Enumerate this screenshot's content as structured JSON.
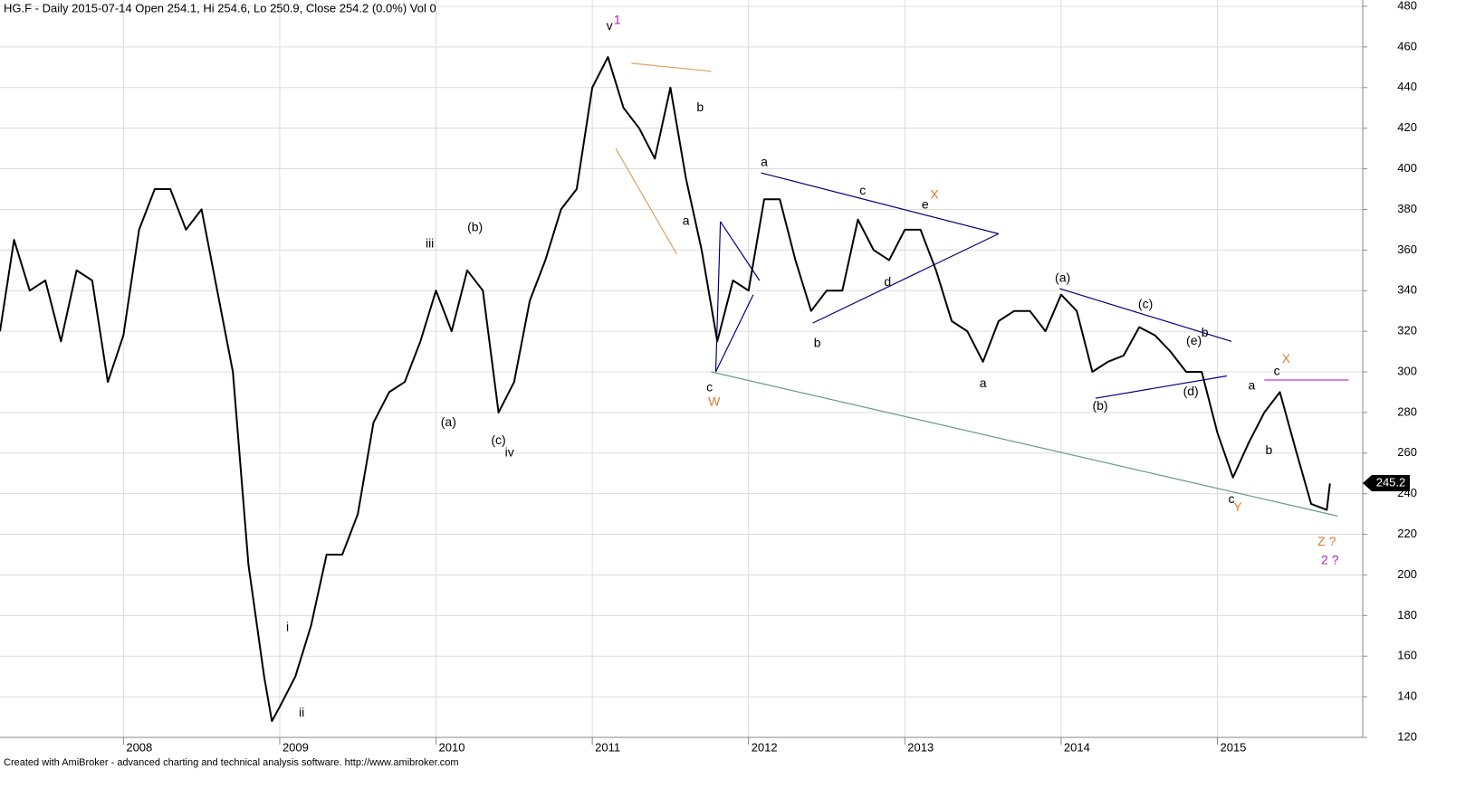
{
  "chart_data": {
    "type": "line",
    "title": "HG.F - Daily 2015-07-14 Open 254.1, Hi 254.6, Lo 250.9, Close 254.2 (0.0%) Vol 0",
    "footer": "Created with AmiBroker - advanced charting and technical analysis software. http://www.amibroker.com",
    "xlim": [
      2007.21,
      2015.93
    ],
    "xticks": [
      2008,
      2009,
      2010,
      2011,
      2012,
      2013,
      2014,
      2015
    ],
    "ylim": [
      120,
      480
    ],
    "yticks": [
      120,
      140,
      160,
      180,
      200,
      220,
      240,
      260,
      280,
      300,
      320,
      340,
      360,
      380,
      400,
      420,
      440,
      460,
      480
    ],
    "grid": true,
    "x": [
      2007.21,
      2007.3,
      2007.4,
      2007.5,
      2007.6,
      2007.7,
      2007.8,
      2007.9,
      2008.0,
      2008.1,
      2008.2,
      2008.3,
      2008.4,
      2008.5,
      2008.6,
      2008.7,
      2008.8,
      2008.9,
      2008.95,
      2009.0,
      2009.1,
      2009.2,
      2009.3,
      2009.4,
      2009.5,
      2009.6,
      2009.7,
      2009.8,
      2009.9,
      2010.0,
      2010.1,
      2010.2,
      2010.3,
      2010.4,
      2010.5,
      2010.6,
      2010.7,
      2010.8,
      2010.9,
      2011.0,
      2011.1,
      2011.2,
      2011.3,
      2011.4,
      2011.5,
      2011.6,
      2011.7,
      2011.8,
      2011.9,
      2012.0,
      2012.1,
      2012.2,
      2012.3,
      2012.4,
      2012.5,
      2012.6,
      2012.7,
      2012.8,
      2012.9,
      2013.0,
      2013.1,
      2013.2,
      2013.3,
      2013.4,
      2013.5,
      2013.6,
      2013.7,
      2013.8,
      2013.9,
      2014.0,
      2014.1,
      2014.2,
      2014.3,
      2014.4,
      2014.5,
      2014.6,
      2014.7,
      2014.8,
      2014.9,
      2015.0,
      2015.1,
      2015.2,
      2015.3,
      2015.4,
      2015.5,
      2015.6,
      2015.7,
      2015.72
    ],
    "series": [
      {
        "name": "HG.F",
        "color": "#000000",
        "values": [
          320,
          365,
          340,
          345,
          315,
          350,
          345,
          295,
          318,
          370,
          390,
          390,
          370,
          380,
          340,
          300,
          205,
          150,
          128,
          135,
          150,
          175,
          210,
          210,
          230,
          275,
          290,
          295,
          315,
          340,
          320,
          350,
          340,
          280,
          295,
          335,
          355,
          380,
          390,
          440,
          455,
          430,
          420,
          405,
          440,
          395,
          360,
          315,
          345,
          340,
          385,
          385,
          355,
          330,
          340,
          340,
          375,
          360,
          355,
          370,
          370,
          350,
          325,
          320,
          305,
          325,
          330,
          330,
          320,
          338,
          330,
          300,
          305,
          308,
          322,
          318,
          310,
          300,
          300,
          270,
          248,
          265,
          280,
          290,
          262,
          235,
          232,
          245
        ]
      }
    ],
    "last_value": 245.2,
    "trendlines": [
      {
        "x1": 2011.25,
        "y1": 452,
        "x2": 2011.76,
        "y2": 448,
        "color": "#e0a060"
      },
      {
        "x1": 2011.15,
        "y1": 410,
        "x2": 2011.54,
        "y2": 358,
        "color": "#e0a060"
      },
      {
        "x1": 2011.79,
        "y1": 300,
        "x2": 2012.03,
        "y2": 338,
        "color": "#000080"
      },
      {
        "x1": 2011.82,
        "y1": 374,
        "x2": 2012.07,
        "y2": 345,
        "color": "#000080"
      },
      {
        "x1": 2011.79,
        "y1": 300,
        "x2": 2011.82,
        "y2": 374,
        "color": "#000080"
      },
      {
        "x1": 2012.08,
        "y1": 398,
        "x2": 2013.6,
        "y2": 368,
        "color": "#000080"
      },
      {
        "x1": 2012.41,
        "y1": 324,
        "x2": 2013.6,
        "y2": 368,
        "color": "#000080"
      },
      {
        "x1": 2013.99,
        "y1": 341,
        "x2": 2015.09,
        "y2": 315,
        "color": "#000080"
      },
      {
        "x1": 2014.22,
        "y1": 287,
        "x2": 2015.06,
        "y2": 298,
        "color": "#000080"
      },
      {
        "x1": 2011.76,
        "y1": 300,
        "x2": 2015.77,
        "y2": 229,
        "color": "#6a9a8a"
      },
      {
        "x1": 2015.3,
        "y1": 296,
        "x2": 2015.84,
        "y2": 296,
        "color": "#d030d0"
      }
    ],
    "annotations": [
      {
        "text": "v",
        "x": 2011.11,
        "y": 470,
        "color": "#000000"
      },
      {
        "text": "1",
        "x": 2011.16,
        "y": 473,
        "color": "#b020b0"
      },
      {
        "text": "b",
        "x": 2011.69,
        "y": 430,
        "color": "#000000"
      },
      {
        "text": "a",
        "x": 2011.6,
        "y": 374,
        "color": "#000000"
      },
      {
        "text": "c",
        "x": 2011.75,
        "y": 292,
        "color": "#000000"
      },
      {
        "text": "W",
        "x": 2011.78,
        "y": 285,
        "color": "#e07a30"
      },
      {
        "text": "a",
        "x": 2012.1,
        "y": 403,
        "color": "#000000"
      },
      {
        "text": "b",
        "x": 2012.44,
        "y": 314,
        "color": "#000000"
      },
      {
        "text": "c",
        "x": 2012.73,
        "y": 389,
        "color": "#000000"
      },
      {
        "text": "d",
        "x": 2012.89,
        "y": 344,
        "color": "#000000"
      },
      {
        "text": "e",
        "x": 2013.13,
        "y": 382,
        "color": "#000000"
      },
      {
        "text": "X",
        "x": 2013.19,
        "y": 387,
        "color": "#e07a30"
      },
      {
        "text": "a",
        "x": 2013.5,
        "y": 294,
        "color": "#000000"
      },
      {
        "text": "(a)",
        "x": 2014.01,
        "y": 346,
        "color": "#000000"
      },
      {
        "text": "(b)",
        "x": 2014.25,
        "y": 283,
        "color": "#000000"
      },
      {
        "text": "(c)",
        "x": 2014.54,
        "y": 333,
        "color": "#000000"
      },
      {
        "text": "(d)",
        "x": 2014.83,
        "y": 290,
        "color": "#000000"
      },
      {
        "text": "(e)",
        "x": 2014.85,
        "y": 315,
        "color": "#000000"
      },
      {
        "text": "b",
        "x": 2014.92,
        "y": 319,
        "color": "#000000"
      },
      {
        "text": "c",
        "x": 2015.09,
        "y": 237,
        "color": "#000000"
      },
      {
        "text": "Y",
        "x": 2015.13,
        "y": 233,
        "color": "#e07a30"
      },
      {
        "text": "a",
        "x": 2015.22,
        "y": 293,
        "color": "#000000"
      },
      {
        "text": "b",
        "x": 2015.33,
        "y": 261,
        "color": "#000000"
      },
      {
        "text": "c",
        "x": 2015.38,
        "y": 300,
        "color": "#000000"
      },
      {
        "text": "X",
        "x": 2015.44,
        "y": 306,
        "color": "#e07a30"
      },
      {
        "text": "Z ?",
        "x": 2015.7,
        "y": 216,
        "color": "#e07a30"
      },
      {
        "text": "2 ?",
        "x": 2015.72,
        "y": 207,
        "color": "#b020b0"
      },
      {
        "text": "iii",
        "x": 2009.96,
        "y": 363,
        "color": "#000000"
      },
      {
        "text": "(b)",
        "x": 2010.25,
        "y": 371,
        "color": "#000000"
      },
      {
        "text": "(a)",
        "x": 2010.08,
        "y": 275,
        "color": "#000000"
      },
      {
        "text": "(c)",
        "x": 2010.4,
        "y": 266,
        "color": "#000000"
      },
      {
        "text": "iv",
        "x": 2010.47,
        "y": 260,
        "color": "#000000"
      },
      {
        "text": "i",
        "x": 2009.05,
        "y": 174,
        "color": "#000000"
      },
      {
        "text": "ii",
        "x": 2009.14,
        "y": 132,
        "color": "#000000"
      }
    ]
  }
}
